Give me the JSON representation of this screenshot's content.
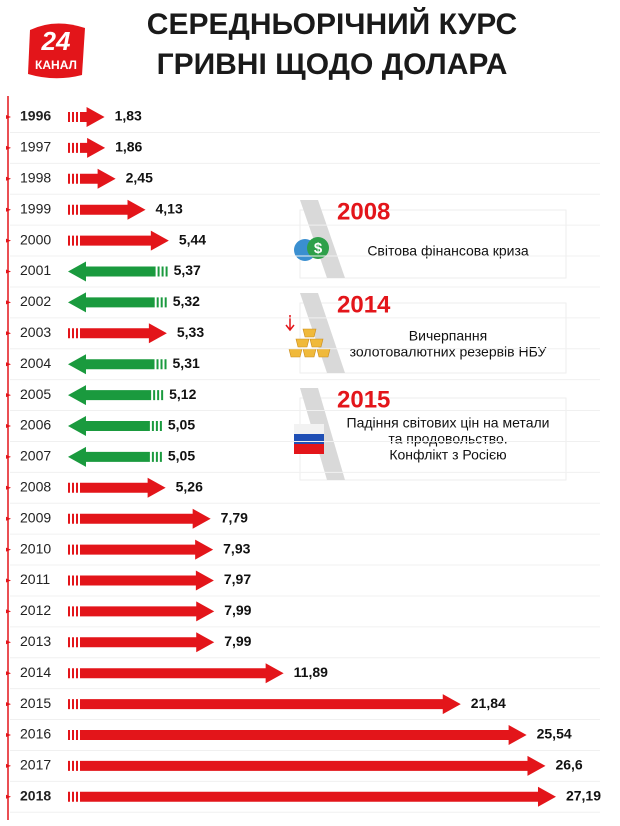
{
  "chart_data": {
    "type": "arrow-bar",
    "title_lines": [
      "СЕРЕДНЬОРІЧНИЙ КУРС",
      "ГРИВНІ ЩОДО ДОЛАРА"
    ],
    "logo": {
      "number": "24",
      "name": "КАНАЛ"
    },
    "categories": [
      "1996",
      "1997",
      "1998",
      "1999",
      "2000",
      "2001",
      "2002",
      "2003",
      "2004",
      "2005",
      "2006",
      "2007",
      "2008",
      "2009",
      "2010",
      "2011",
      "2012",
      "2013",
      "2014",
      "2015",
      "2016",
      "2017",
      "2018"
    ],
    "values": [
      1.83,
      1.86,
      2.45,
      4.13,
      5.44,
      5.37,
      5.32,
      5.33,
      5.31,
      5.12,
      5.05,
      5.05,
      5.26,
      7.79,
      7.93,
      7.97,
      7.99,
      7.99,
      11.89,
      21.84,
      25.54,
      26.6,
      27.19
    ],
    "value_labels": [
      "1,83",
      "1,86",
      "2,45",
      "4,13",
      "5,44",
      "5,37",
      "5,32",
      "5,33",
      "5,31",
      "5,12",
      "5,05",
      "5,05",
      "5,26",
      "7,79",
      "7,93",
      "7,97",
      "7,99",
      "7,99",
      "11,89",
      "21,84",
      "25,54",
      "26,6",
      "27,19"
    ],
    "colors": [
      "#e3151a",
      "#e3151a",
      "#e3151a",
      "#e3151a",
      "#e3151a",
      "#1a9a3e",
      "#1a9a3e",
      "#e3151a",
      "#1a9a3e",
      "#1a9a3e",
      "#1a9a3e",
      "#1a9a3e",
      "#e3151a",
      "#e3151a",
      "#e3151a",
      "#e3151a",
      "#e3151a",
      "#e3151a",
      "#e3151a",
      "#e3151a",
      "#e3151a",
      "#e3151a",
      "#e3151a"
    ],
    "arrow_directions": [
      "right",
      "right",
      "right",
      "right",
      "right",
      "left",
      "left",
      "right",
      "left",
      "left",
      "left",
      "left",
      "right",
      "right",
      "right",
      "right",
      "right",
      "right",
      "right",
      "right",
      "right",
      "right",
      "right"
    ],
    "annotations": [
      {
        "year": "2008",
        "text": [
          "Світова фінансова криза"
        ]
      },
      {
        "year": "2014",
        "text": [
          "Вичерпання",
          "золотовалютних резервів НБУ"
        ]
      },
      {
        "year": "2015",
        "text": [
          "Падіння світових цін на метали",
          "та продовольство.",
          "Конфлікт з Росією"
        ]
      }
    ]
  }
}
